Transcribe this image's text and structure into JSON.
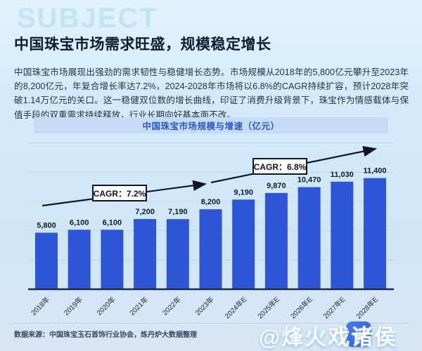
{
  "page": {
    "background_watermark": "SUBJECT",
    "title": "中国珠宝市场需求旺盛，规模稳定增长",
    "paragraph": "中国珠宝市场展现出强劲的需求韧性与稳健增长态势。市场规模从2018年的5,800亿元攀升至2023年的8,200亿元，年复合增长率达7.2%，2024-2028年市场将以6.8%的CAGR持续扩容，预计2028年突破1.14万亿元的关口。这一稳健双位数的增长曲线，印证了消费升级背景下，珠宝作为情感载体与保值手段的双重需求持续释放，行业长期向好基本面不改。"
  },
  "chart_data": {
    "type": "bar",
    "title": "中国珠宝市场规模与增速（亿元）",
    "categories": [
      "2018年",
      "2019年",
      "2020年",
      "2021年",
      "2022年",
      "2023年",
      "2024年E",
      "2025年E",
      "2026年E",
      "2027年E",
      "2028年E"
    ],
    "values": [
      5800,
      6100,
      6100,
      7200,
      7190,
      8200,
      9190,
      9870,
      10470,
      11030,
      11400
    ],
    "value_labels": [
      "5,800",
      "6,100",
      "6,100",
      "7,200",
      "7,190",
      "8,200",
      "9,190",
      "9,870",
      "10,470",
      "11,030",
      "11,400"
    ],
    "ylabel": "",
    "xlabel": "",
    "ylim": [
      0,
      15000
    ],
    "gridline_values": [
      3000,
      6000,
      9000,
      12000,
      15000
    ],
    "grid": true,
    "legend_position": "none",
    "bar_color": "#2e55d8",
    "annotations": [
      {
        "label": "CAGR：7.2%",
        "applies_to": "2018-2023"
      },
      {
        "label": "CAGR：6.8%",
        "applies_to": "2024-2028"
      }
    ]
  },
  "footer": {
    "source": "数据来源：中国珠宝玉石首饰行业协会，炼丹炉大数据整理",
    "author_watermark": "@烽火戏诸侯",
    "logo": "liandanlu-app-logo"
  }
}
